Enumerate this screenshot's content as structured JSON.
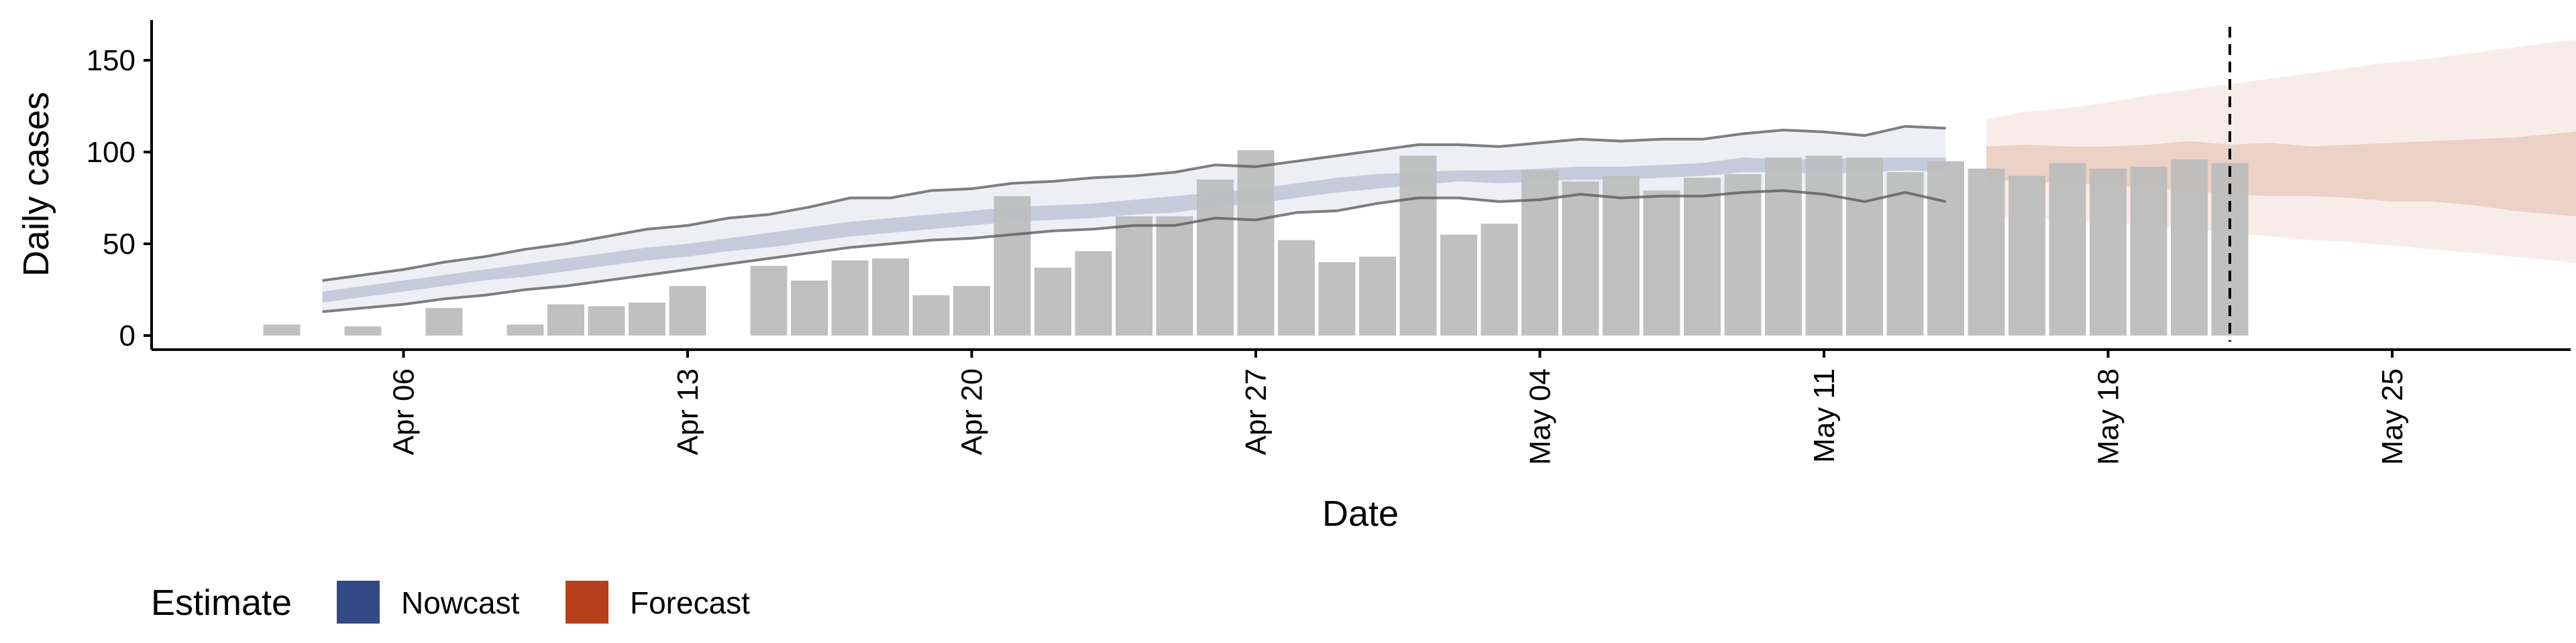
{
  "chart_data": {
    "type": "bar",
    "title": "",
    "xlabel": "Date",
    "ylabel": "Daily cases",
    "ylim": [
      -8,
      170
    ],
    "xlim": [
      "2020-04-01",
      "2020-05-31"
    ],
    "grid": false,
    "x_ticks": [
      {
        "date": "2020-04-06",
        "label": "Apr 06"
      },
      {
        "date": "2020-04-13",
        "label": "Apr 13"
      },
      {
        "date": "2020-04-20",
        "label": "Apr 20"
      },
      {
        "date": "2020-04-27",
        "label": "Apr 27"
      },
      {
        "date": "2020-05-04",
        "label": "May 04"
      },
      {
        "date": "2020-05-11",
        "label": "May 11"
      },
      {
        "date": "2020-05-18",
        "label": "May 18"
      },
      {
        "date": "2020-05-25",
        "label": "May 25"
      }
    ],
    "y_ticks": [
      0,
      50,
      100,
      150
    ],
    "bar_color": "#bdbdbd",
    "observed_cases": {
      "start_date": "2020-04-03",
      "values": [
        6,
        null,
        5,
        null,
        15,
        null,
        6,
        17,
        16,
        18,
        27,
        null,
        38,
        30,
        41,
        42,
        22,
        27,
        76,
        37,
        46,
        65,
        65,
        85,
        101,
        52,
        40,
        43,
        98,
        55,
        61,
        90,
        84,
        87,
        79,
        86,
        88,
        97,
        98,
        97,
        89,
        95,
        91,
        87,
        94,
        91,
        92,
        96,
        94
      ]
    },
    "nowcast": {
      "color": "#3b4f8a",
      "start_date": "2020-04-04",
      "outer_upper": [
        30,
        33,
        36,
        40,
        43,
        47,
        50,
        54,
        58,
        60,
        64,
        66,
        70,
        75,
        75,
        79,
        80,
        83,
        84,
        86,
        87,
        89,
        93,
        92,
        95,
        98,
        101,
        104,
        104,
        103,
        105,
        107,
        106,
        107,
        107,
        110,
        112,
        111,
        109,
        114,
        113
      ],
      "inner_upper": [
        24,
        27,
        30,
        33,
        36,
        39,
        42,
        45,
        48,
        50,
        53,
        56,
        59,
        62,
        64,
        66,
        68,
        70,
        71,
        72,
        74,
        76,
        78,
        80,
        83,
        86,
        88,
        89,
        90,
        90,
        91,
        92,
        92,
        93,
        94,
        97,
        96,
        96,
        97,
        97,
        97
      ],
      "inner_lower": [
        18,
        21,
        24,
        27,
        30,
        32,
        35,
        38,
        41,
        43,
        46,
        48,
        51,
        54,
        56,
        58,
        60,
        62,
        63,
        64,
        66,
        67,
        70,
        72,
        75,
        78,
        80,
        82,
        84,
        83,
        84,
        85,
        85,
        86,
        87,
        89,
        89,
        88,
        89,
        90,
        89
      ],
      "outer_lower": [
        13,
        15,
        17,
        20,
        22,
        25,
        27,
        30,
        33,
        36,
        39,
        42,
        45,
        48,
        50,
        52,
        53,
        55,
        57,
        58,
        60,
        60,
        64,
        63,
        67,
        68,
        72,
        75,
        75,
        73,
        74,
        77,
        75,
        76,
        76,
        78,
        79,
        77,
        73,
        78,
        73
      ]
    },
    "forecast": {
      "color": "#b5451b",
      "start_date": "2020-05-15",
      "outer_upper": [
        118,
        122,
        124,
        127,
        131,
        134,
        137,
        140,
        143,
        146,
        149,
        151,
        154,
        157,
        160,
        162,
        163
      ],
      "inner_upper": [
        103,
        104,
        103,
        103,
        104,
        106,
        104,
        105,
        103,
        104,
        105,
        106,
        107,
        108,
        110,
        112,
        113
      ],
      "inner_lower": [
        85,
        84,
        83,
        82,
        80,
        79,
        77,
        76,
        76,
        75,
        73,
        73,
        71,
        68,
        66,
        64,
        63
      ],
      "outer_lower": [
        65,
        64,
        63,
        62,
        60,
        58,
        56,
        54,
        52,
        51,
        49,
        47,
        45,
        43,
        41,
        38,
        35
      ]
    },
    "forecast_start_marker": "2020-05-21",
    "legend": {
      "title": "Estimate",
      "position": "bottom-left",
      "items": [
        {
          "label": "Nowcast",
          "color": "#334a87"
        },
        {
          "label": "Forecast",
          "color": "#b5401b"
        }
      ]
    }
  }
}
